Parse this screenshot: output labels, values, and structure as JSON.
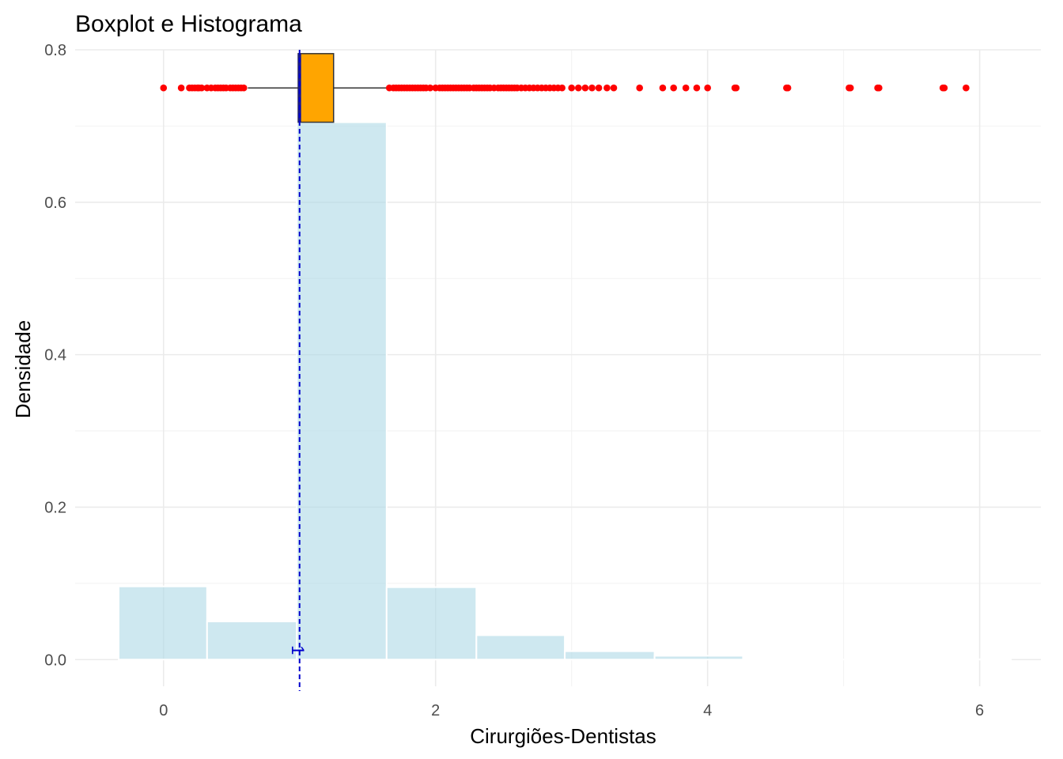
{
  "chart_data": {
    "type": "histogram+boxplot",
    "title": "Boxplot e Histograma",
    "xlabel": "Cirurgiões-Dentistas",
    "ylabel": "Densidade",
    "xlim": [
      -0.65,
      6.45
    ],
    "ylim": [
      -0.035,
      0.8
    ],
    "x_ticks": [
      0,
      2,
      4,
      6
    ],
    "x_tick_labels": [
      "0",
      "2",
      "4",
      "6"
    ],
    "y_ticks": [
      0.0,
      0.2,
      0.4,
      0.6,
      0.8
    ],
    "y_tick_labels": [
      "0.0",
      "0.2",
      "0.4",
      "0.6",
      "0.8"
    ],
    "grid": true,
    "histogram": {
      "fill_color": "#add8e6",
      "bins": [
        {
          "start": -0.33,
          "end": 0.32,
          "density": 0.096
        },
        {
          "start": 0.32,
          "end": 0.98,
          "density": 0.05
        },
        {
          "start": 0.98,
          "end": 1.64,
          "density": 0.705
        },
        {
          "start": 1.64,
          "end": 2.3,
          "density": 0.095
        },
        {
          "start": 2.3,
          "end": 2.95,
          "density": 0.032
        },
        {
          "start": 2.95,
          "end": 3.61,
          "density": 0.011
        },
        {
          "start": 3.61,
          "end": 4.26,
          "density": 0.005
        },
        {
          "start": 4.26,
          "end": 4.92,
          "density": 0.0006
        },
        {
          "start": 4.92,
          "end": 5.57,
          "density": 0.0003
        },
        {
          "start": 5.57,
          "end": 6.23,
          "density": 0.0004
        }
      ]
    },
    "boxplot": {
      "y_center": 0.75,
      "y_bottom": 0.705,
      "y_top": 0.795,
      "q1": 0.99,
      "median": 1.0,
      "q3": 1.25,
      "whisker_low": 0.62,
      "whisker_high": 1.65,
      "box_color": "#ffa500",
      "outlier_color": "#ff0000",
      "outliers": [
        0.0,
        0.13,
        0.19,
        0.21,
        0.23,
        0.25,
        0.26,
        0.28,
        0.32,
        0.35,
        0.38,
        0.4,
        0.42,
        0.44,
        0.46,
        0.49,
        0.51,
        0.53,
        0.55,
        0.57,
        0.59,
        1.66,
        1.69,
        1.71,
        1.73,
        1.75,
        1.77,
        1.79,
        1.81,
        1.83,
        1.85,
        1.87,
        1.89,
        1.91,
        1.93,
        1.96,
        2.0,
        2.03,
        2.05,
        2.07,
        2.09,
        2.11,
        2.13,
        2.15,
        2.17,
        2.19,
        2.21,
        2.23,
        2.25,
        2.28,
        2.3,
        2.32,
        2.34,
        2.36,
        2.38,
        2.4,
        2.43,
        2.46,
        2.48,
        2.5,
        2.52,
        2.54,
        2.56,
        2.58,
        2.6,
        2.63,
        2.66,
        2.69,
        2.72,
        2.75,
        2.78,
        2.81,
        2.84,
        2.87,
        2.9,
        2.93,
        3.0,
        3.05,
        3.1,
        3.15,
        3.2,
        3.26,
        3.31,
        3.5,
        3.67,
        3.75,
        3.84,
        3.92,
        4.0,
        4.2,
        4.21,
        4.58,
        4.59,
        5.04,
        5.05,
        5.25,
        5.26,
        5.73,
        5.74,
        5.9
      ]
    },
    "reference_line": {
      "x": 1.0,
      "label": "1",
      "color": "#0000cd"
    }
  }
}
